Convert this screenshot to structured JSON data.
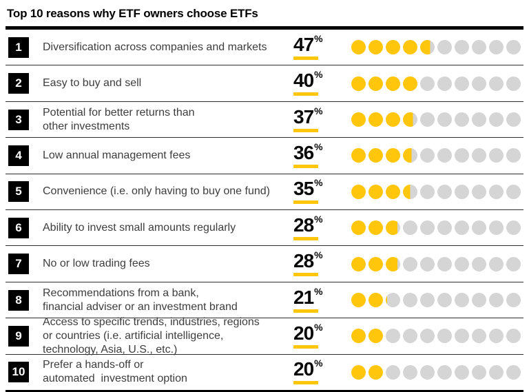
{
  "title": "Top 10 reasons why ETF owners choose ETFs",
  "percent_sign": "%",
  "colors": {
    "accent_yellow": "#FFC60B",
    "dot_gray": "#D5D5D5",
    "text_dark": "#3d3d3d",
    "black": "#000000"
  },
  "rows": [
    {
      "rank": "1",
      "label": "Diversification across companies and markets",
      "percent": 47
    },
    {
      "rank": "2",
      "label": "Easy to buy and sell",
      "percent": 40
    },
    {
      "rank": "3",
      "label": "Potential for better returns than\nother investments",
      "percent": 37
    },
    {
      "rank": "4",
      "label": "Low annual management fees",
      "percent": 36
    },
    {
      "rank": "5",
      "label": "Convenience (i.e. only having to buy one fund)",
      "percent": 35
    },
    {
      "rank": "6",
      "label": "Ability to invest small amounts regularly",
      "percent": 28
    },
    {
      "rank": "7",
      "label": "No or low trading fees",
      "percent": 28
    },
    {
      "rank": "8",
      "label": "Recommendations from a bank,\nfinancial adviser or an investment brand",
      "percent": 21
    },
    {
      "rank": "9",
      "label": "Access to specific trends, industries, regions\nor countries (i.e. artificial intelligence,\ntechnology, Asia, U.S., etc.)",
      "percent": 20
    },
    {
      "rank": "10",
      "label": "Prefer a hands-off or\nautomated  investment option",
      "percent": 20
    }
  ],
  "chart_data": {
    "type": "bar",
    "title": "Top 10 reasons why ETF owners choose ETFs",
    "unit": "%",
    "dots_per_row": 10,
    "value_per_dot": 10,
    "xlim": [
      0,
      100
    ],
    "categories": [
      "Diversification across companies and markets",
      "Easy to buy and sell",
      "Potential for better returns than other investments",
      "Low annual management fees",
      "Convenience (i.e. only having to buy one fund)",
      "Ability to invest small amounts regularly",
      "No or low trading fees",
      "Recommendations from a bank, financial adviser or an investment brand",
      "Access to specific trends, industries, regions or countries (i.e. artificial intelligence, technology, Asia, U.S., etc.)",
      "Prefer a hands-off or automated investment option"
    ],
    "values": [
      47,
      40,
      37,
      36,
      35,
      28,
      28,
      21,
      20,
      20
    ]
  }
}
